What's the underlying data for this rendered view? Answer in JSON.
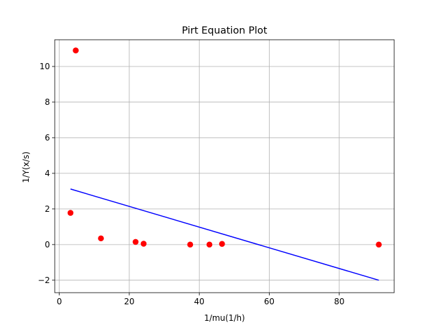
{
  "chart_data": {
    "type": "scatter",
    "title": "Pirt Equation Plot",
    "xlabel": "1/mu(1/h)",
    "ylabel": "1/Y(x/s)",
    "xlim": [
      -1.3,
      95.7
    ],
    "ylim": [
      -2.7,
      11.5
    ],
    "xticks": [
      0,
      20,
      40,
      60,
      80
    ],
    "yticks": [
      -2,
      0,
      2,
      4,
      6,
      8,
      10
    ],
    "xtick_labels": [
      "0",
      "20",
      "40",
      "60",
      "80"
    ],
    "ytick_labels": [
      "−2",
      "0",
      "2",
      "4",
      "6",
      "8",
      "10"
    ],
    "grid": true,
    "series": [
      {
        "type": "scatter",
        "color": "#ff0000",
        "x": [
          3.2,
          4.7,
          11.9,
          21.8,
          24.1,
          37.4,
          42.9,
          46.5,
          91.3
        ],
        "y": [
          1.78,
          10.9,
          0.35,
          0.15,
          0.05,
          0.0,
          0.0,
          0.04,
          0.0
        ]
      },
      {
        "type": "line",
        "color": "#0000ff",
        "x": [
          3.2,
          91.3
        ],
        "y": [
          3.12,
          -2.0
        ]
      }
    ]
  }
}
